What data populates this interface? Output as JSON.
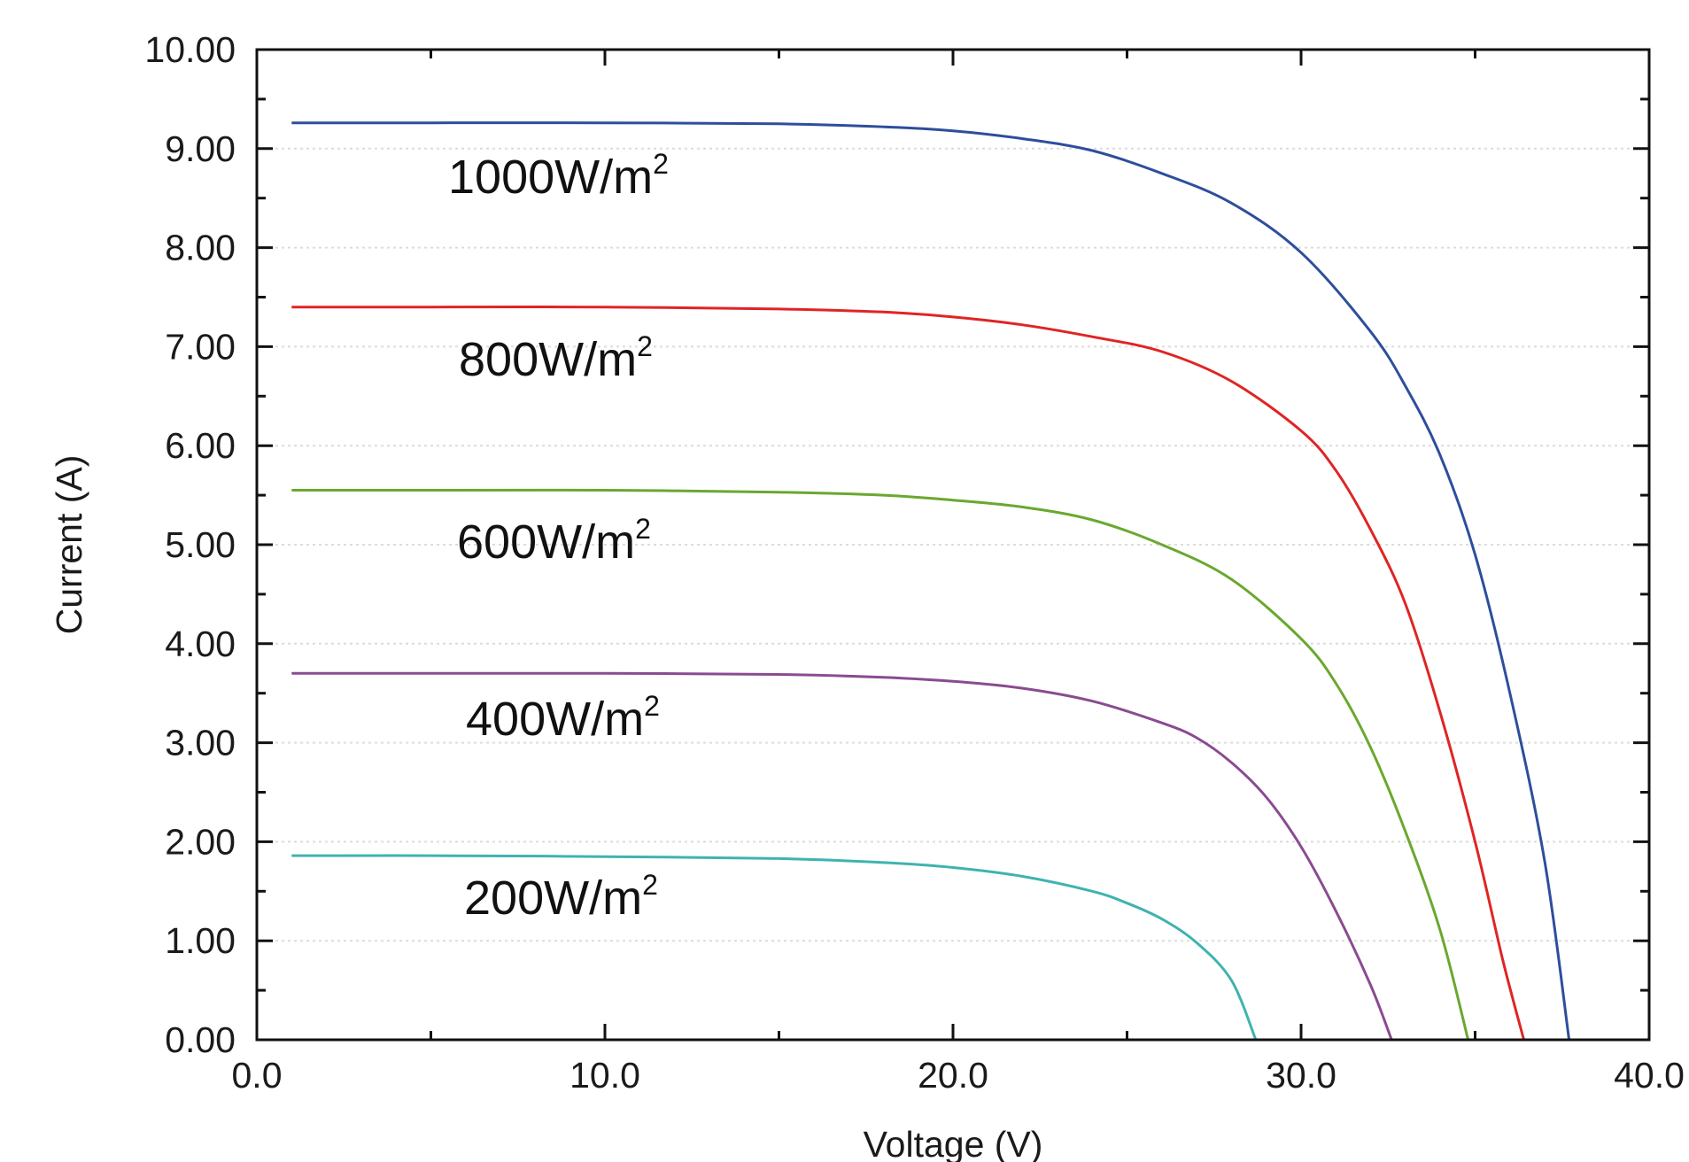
{
  "chart_data": {
    "type": "line",
    "title": "",
    "xlabel": "Voltage (V)",
    "ylabel": "Current (A)",
    "xlim": [
      0,
      40
    ],
    "ylim": [
      0,
      10
    ],
    "x_ticks": [
      "0.0",
      "10.0",
      "20.0",
      "30.0",
      "40.0"
    ],
    "y_ticks": [
      "0.00",
      "1.00",
      "2.00",
      "3.00",
      "4.00",
      "5.00",
      "6.00",
      "7.00",
      "8.00",
      "9.00",
      "10.00"
    ],
    "grid": true,
    "series": [
      {
        "name": "1000W/m²",
        "label_base": "1000W/m",
        "label_sup": "2",
        "color": "#2e4e9c",
        "points": [
          [
            1.0,
            9.26
          ],
          [
            5,
            9.26
          ],
          [
            10,
            9.26
          ],
          [
            15,
            9.25
          ],
          [
            18,
            9.22
          ],
          [
            20,
            9.18
          ],
          [
            22,
            9.1
          ],
          [
            24,
            8.98
          ],
          [
            26,
            8.75
          ],
          [
            28,
            8.45
          ],
          [
            30,
            7.95
          ],
          [
            32,
            7.15
          ],
          [
            33,
            6.6
          ],
          [
            34,
            5.9
          ],
          [
            35,
            4.9
          ],
          [
            36,
            3.5
          ],
          [
            37,
            1.8
          ],
          [
            37.7,
            0.0
          ]
        ]
      },
      {
        "name": "800W/m²",
        "label_base": "800W/m",
        "label_sup": "2",
        "color": "#e02424",
        "points": [
          [
            1.0,
            7.4
          ],
          [
            5,
            7.4
          ],
          [
            10,
            7.4
          ],
          [
            15,
            7.38
          ],
          [
            18,
            7.35
          ],
          [
            20,
            7.3
          ],
          [
            22,
            7.22
          ],
          [
            24,
            7.1
          ],
          [
            26,
            6.95
          ],
          [
            28,
            6.65
          ],
          [
            30,
            6.15
          ],
          [
            31,
            5.75
          ],
          [
            32,
            5.15
          ],
          [
            33,
            4.4
          ],
          [
            34,
            3.3
          ],
          [
            35,
            2.0
          ],
          [
            35.8,
            0.8
          ],
          [
            36.4,
            0.0
          ]
        ]
      },
      {
        "name": "600W/m²",
        "label_base": "600W/m",
        "label_sup": "2",
        "color": "#6aa82e",
        "points": [
          [
            1.0,
            5.55
          ],
          [
            5,
            5.55
          ],
          [
            10,
            5.55
          ],
          [
            15,
            5.53
          ],
          [
            18,
            5.5
          ],
          [
            20,
            5.45
          ],
          [
            22,
            5.38
          ],
          [
            24,
            5.25
          ],
          [
            26,
            5.0
          ],
          [
            28,
            4.65
          ],
          [
            30,
            4.05
          ],
          [
            31,
            3.6
          ],
          [
            32,
            2.95
          ],
          [
            33,
            2.1
          ],
          [
            34,
            1.1
          ],
          [
            34.8,
            0.0
          ]
        ]
      },
      {
        "name": "400W/m²",
        "label_base": "400W/m",
        "label_sup": "2",
        "color": "#8a4b91",
        "points": [
          [
            1.0,
            3.7
          ],
          [
            5,
            3.7
          ],
          [
            10,
            3.7
          ],
          [
            15,
            3.69
          ],
          [
            18,
            3.66
          ],
          [
            20,
            3.62
          ],
          [
            22,
            3.55
          ],
          [
            24,
            3.42
          ],
          [
            26,
            3.2
          ],
          [
            27,
            3.05
          ],
          [
            28,
            2.8
          ],
          [
            29,
            2.45
          ],
          [
            30,
            1.95
          ],
          [
            31,
            1.3
          ],
          [
            32,
            0.55
          ],
          [
            32.6,
            0.0
          ]
        ]
      },
      {
        "name": "200W/m²",
        "label_base": "200W/m",
        "label_sup": "2",
        "color": "#3fb3b0",
        "points": [
          [
            1.0,
            1.86
          ],
          [
            5,
            1.86
          ],
          [
            10,
            1.85
          ],
          [
            15,
            1.83
          ],
          [
            18,
            1.79
          ],
          [
            20,
            1.74
          ],
          [
            22,
            1.65
          ],
          [
            24,
            1.5
          ],
          [
            25,
            1.38
          ],
          [
            26,
            1.22
          ],
          [
            27,
            0.98
          ],
          [
            28,
            0.6
          ],
          [
            28.7,
            0.0
          ]
        ]
      }
    ]
  }
}
